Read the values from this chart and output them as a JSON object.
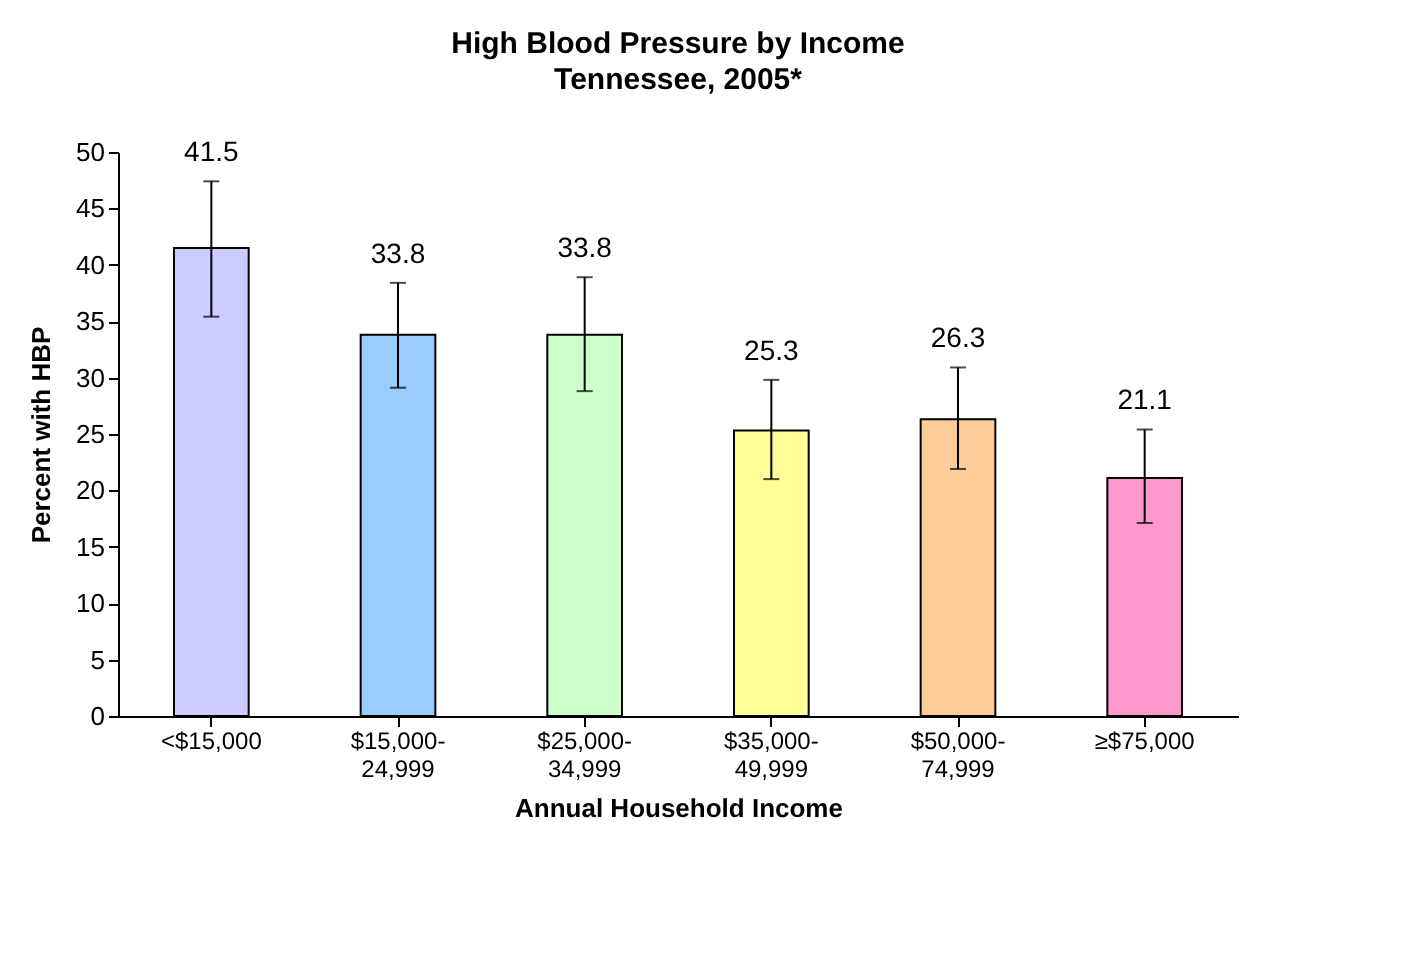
{
  "chart_data": {
    "type": "bar",
    "title": "High Blood Pressure by Income",
    "subtitle": "Tennessee, 2005*",
    "xlabel": "Annual Household Income",
    "ylabel": "Percent with HBP",
    "categories": [
      "<$15,000",
      "$15,000-\n24,999",
      "$25,000-\n34,999",
      "$35,000-\n49,999",
      "$50,000-\n74,999",
      "≥$75,000"
    ],
    "values": [
      41.5,
      33.8,
      33.8,
      25.3,
      26.3,
      21.1
    ],
    "colors": [
      "#ccccff",
      "#99ccff",
      "#ccffcc",
      "#ffff99",
      "#ffcc99",
      "#ff99cc"
    ],
    "errors": [
      [
        35.4,
        47.4
      ],
      [
        29.1,
        38.4
      ],
      [
        28.8,
        38.9
      ],
      [
        21.0,
        29.8
      ],
      [
        21.9,
        30.9
      ],
      [
        17.1,
        25.4
      ]
    ],
    "ylim": [
      0,
      50
    ],
    "yticks": [
      0,
      5,
      10,
      15,
      20,
      25,
      30,
      35,
      40,
      45,
      50
    ],
    "data_labels": true,
    "grid": false,
    "legend": false
  }
}
